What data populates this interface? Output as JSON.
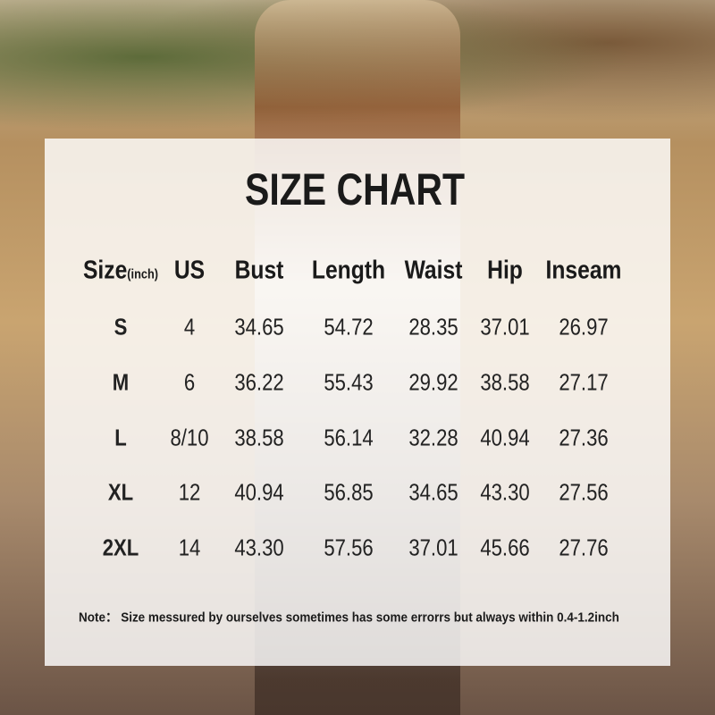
{
  "title": "SIZE CHART",
  "table": {
    "size_unit": "(inch)",
    "header": [
      "Size",
      "US",
      "Bust",
      "Length",
      "Waist",
      "Hip",
      "Inseam"
    ],
    "rows": [
      [
        "S",
        "4",
        "34.65",
        "54.72",
        "28.35",
        "37.01",
        "26.97"
      ],
      [
        "M",
        "6",
        "36.22",
        "55.43",
        "29.92",
        "38.58",
        "27.17"
      ],
      [
        "L",
        "8/10",
        "38.58",
        "56.14",
        "32.28",
        "40.94",
        "27.36"
      ],
      [
        "XL",
        "12",
        "40.94",
        "56.85",
        "34.65",
        "43.30",
        "27.56"
      ],
      [
        "2XL",
        "14",
        "43.30",
        "57.56",
        "37.01",
        "45.66",
        "27.76"
      ]
    ]
  },
  "note": "Note： Size messured by ourselves sometimes has some errorrs but always within 0.4-1.2inch"
}
